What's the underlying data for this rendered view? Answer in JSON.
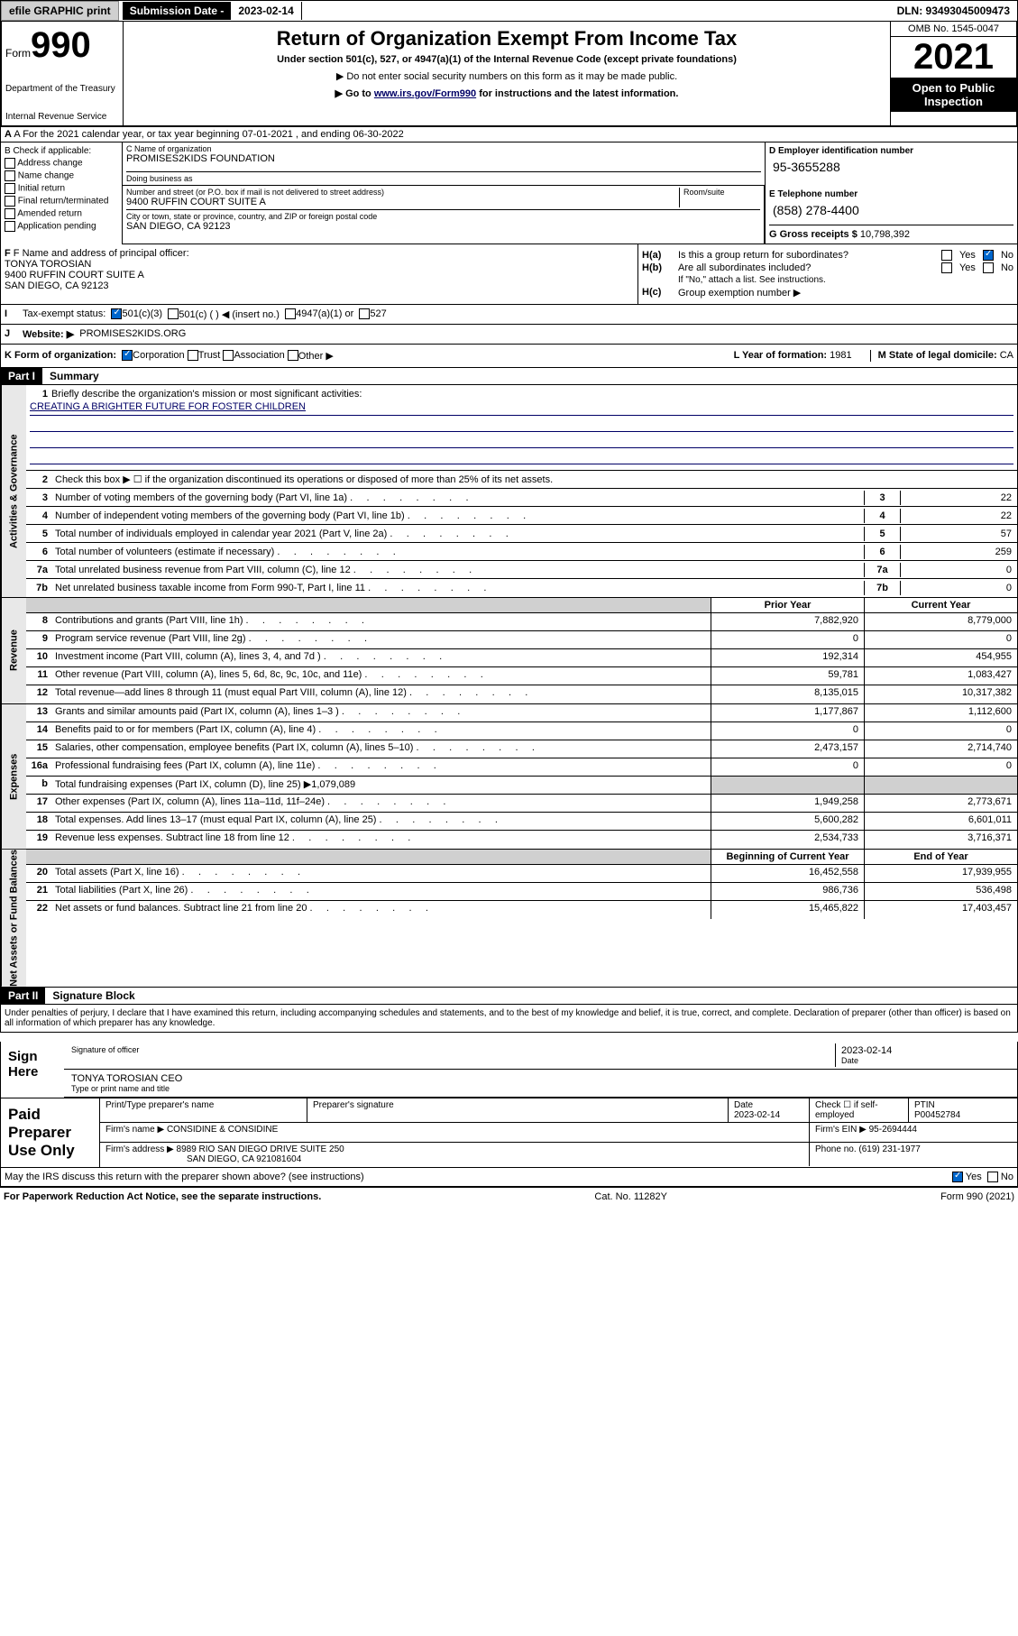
{
  "topbar": {
    "efile": "efile GRAPHIC print",
    "subdate_label": "Submission Date - ",
    "subdate": "2023-02-14",
    "dln": "DLN: 93493045009473"
  },
  "header": {
    "form_prefix": "Form",
    "form_num": "990",
    "dept": "Department of the Treasury",
    "irs": "Internal Revenue Service",
    "title": "Return of Organization Exempt From Income Tax",
    "sub": "Under section 501(c), 527, or 4947(a)(1) of the Internal Revenue Code (except private foundations)",
    "note1": "▶ Do not enter social security numbers on this form as it may be made public.",
    "note2_pre": "▶ Go to ",
    "note2_link": "www.irs.gov/Form990",
    "note2_post": " for instructions and the latest information.",
    "omb": "OMB No. 1545-0047",
    "year": "2021",
    "open": "Open to Public Inspection"
  },
  "rowA": {
    "text": "A For the 2021 calendar year, or tax year beginning 07-01-2021   , and ending 06-30-2022"
  },
  "colB": {
    "label": "B Check if applicable:",
    "items": [
      "Address change",
      "Name change",
      "Initial return",
      "Final return/terminated",
      "Amended return",
      "Application pending"
    ]
  },
  "colC": {
    "name_label": "C Name of organization",
    "name": "PROMISES2KIDS FOUNDATION",
    "dba_label": "Doing business as",
    "dba": "",
    "addr_label": "Number and street (or P.O. box if mail is not delivered to street address)",
    "room_label": "Room/suite",
    "addr": "9400 RUFFIN COURT SUITE A",
    "city_label": "City or town, state or province, country, and ZIP or foreign postal code",
    "city": "SAN DIEGO, CA  92123"
  },
  "colD": {
    "label": "D Employer identification number",
    "val": "95-3655288"
  },
  "colE": {
    "label": "E Telephone number",
    "val": "(858) 278-4400"
  },
  "colG": {
    "label": "G Gross receipts $ ",
    "val": "10,798,392"
  },
  "rowF": {
    "label": "F  Name and address of principal officer:",
    "name": "TONYA TOROSIAN",
    "addr1": "9400 RUFFIN COURT SUITE A",
    "addr2": "SAN DIEGO, CA  92123"
  },
  "rowH": {
    "a": "Is this a group return for subordinates?",
    "b": "Are all subordinates included?",
    "b_note": "If \"No,\" attach a list. See instructions.",
    "c": "Group exemption number ▶"
  },
  "rowI": {
    "label": "Tax-exempt status:",
    "opts": [
      "501(c)(3)",
      "501(c) (  ) ◀ (insert no.)",
      "4947(a)(1) or",
      "527"
    ]
  },
  "rowJ": {
    "label": "Website: ▶",
    "val": "PROMISES2KIDS.ORG"
  },
  "rowK": {
    "label": "K Form of organization:",
    "opts": [
      "Corporation",
      "Trust",
      "Association",
      "Other ▶"
    ]
  },
  "rowL": {
    "label": "L Year of formation: ",
    "val": "1981"
  },
  "rowM": {
    "label": "M State of legal domicile: ",
    "val": "CA"
  },
  "part1": {
    "hdr": "Part I",
    "title": "Summary"
  },
  "summary": {
    "q1": "Briefly describe the organization's mission or most significant activities:",
    "q1_val": "CREATING A BRIGHTER FUTURE FOR FOSTER CHILDREN",
    "q2": "Check this box ▶ ☐  if the organization discontinued its operations or disposed of more than 25% of its net assets.",
    "lines": [
      {
        "n": "3",
        "t": "Number of voting members of the governing body (Part VI, line 1a)",
        "v": "22"
      },
      {
        "n": "4",
        "t": "Number of independent voting members of the governing body (Part VI, line 1b)",
        "v": "22"
      },
      {
        "n": "5",
        "t": "Total number of individuals employed in calendar year 2021 (Part V, line 2a)",
        "v": "57"
      },
      {
        "n": "6",
        "t": "Total number of volunteers (estimate if necessary)",
        "v": "259"
      },
      {
        "n": "7a",
        "t": "Total unrelated business revenue from Part VIII, column (C), line 12",
        "v": "0"
      },
      {
        "n": "7b",
        "t": "Net unrelated business taxable income from Form 990-T, Part I, line 11",
        "v": "0"
      }
    ]
  },
  "revenue": {
    "hdr_prior": "Prior Year",
    "hdr_curr": "Current Year",
    "rows": [
      {
        "n": "8",
        "t": "Contributions and grants (Part VIII, line 1h)",
        "p": "7,882,920",
        "c": "8,779,000"
      },
      {
        "n": "9",
        "t": "Program service revenue (Part VIII, line 2g)",
        "p": "0",
        "c": "0"
      },
      {
        "n": "10",
        "t": "Investment income (Part VIII, column (A), lines 3, 4, and 7d )",
        "p": "192,314",
        "c": "454,955"
      },
      {
        "n": "11",
        "t": "Other revenue (Part VIII, column (A), lines 5, 6d, 8c, 9c, 10c, and 11e)",
        "p": "59,781",
        "c": "1,083,427"
      },
      {
        "n": "12",
        "t": "Total revenue—add lines 8 through 11 (must equal Part VIII, column (A), line 12)",
        "p": "8,135,015",
        "c": "10,317,382"
      }
    ]
  },
  "expenses": {
    "rows": [
      {
        "n": "13",
        "t": "Grants and similar amounts paid (Part IX, column (A), lines 1–3 )",
        "p": "1,177,867",
        "c": "1,112,600"
      },
      {
        "n": "14",
        "t": "Benefits paid to or for members (Part IX, column (A), line 4)",
        "p": "0",
        "c": "0"
      },
      {
        "n": "15",
        "t": "Salaries, other compensation, employee benefits (Part IX, column (A), lines 5–10)",
        "p": "2,473,157",
        "c": "2,714,740"
      },
      {
        "n": "16a",
        "t": "Professional fundraising fees (Part IX, column (A), line 11e)",
        "p": "0",
        "c": "0"
      },
      {
        "n": "b",
        "t": "Total fundraising expenses (Part IX, column (D), line 25) ▶1,079,089",
        "p": "",
        "c": "",
        "grey": true
      },
      {
        "n": "17",
        "t": "Other expenses (Part IX, column (A), lines 11a–11d, 11f–24e)",
        "p": "1,949,258",
        "c": "2,773,671"
      },
      {
        "n": "18",
        "t": "Total expenses. Add lines 13–17 (must equal Part IX, column (A), line 25)",
        "p": "5,600,282",
        "c": "6,601,011"
      },
      {
        "n": "19",
        "t": "Revenue less expenses. Subtract line 18 from line 12",
        "p": "2,534,733",
        "c": "3,716,371"
      }
    ]
  },
  "netassets": {
    "hdr_prior": "Beginning of Current Year",
    "hdr_curr": "End of Year",
    "rows": [
      {
        "n": "20",
        "t": "Total assets (Part X, line 16)",
        "p": "16,452,558",
        "c": "17,939,955"
      },
      {
        "n": "21",
        "t": "Total liabilities (Part X, line 26)",
        "p": "986,736",
        "c": "536,498"
      },
      {
        "n": "22",
        "t": "Net assets or fund balances. Subtract line 21 from line 20",
        "p": "15,465,822",
        "c": "17,403,457"
      }
    ]
  },
  "part2": {
    "hdr": "Part II",
    "title": "Signature Block",
    "decl": "Under penalties of perjury, I declare that I have examined this return, including accompanying schedules and statements, and to the best of my knowledge and belief, it is true, correct, and complete. Declaration of preparer (other than officer) is based on all information of which preparer has any knowledge."
  },
  "sign": {
    "label": "Sign Here",
    "sig_label": "Signature of officer",
    "date": "2023-02-14",
    "date_label": "Date",
    "name": "TONYA TOROSIAN CEO",
    "name_label": "Type or print name and title"
  },
  "prep": {
    "label": "Paid Preparer Use Only",
    "col1": "Print/Type preparer's name",
    "col2": "Preparer's signature",
    "col3": "Date",
    "col3_val": "2023-02-14",
    "col4": "Check ☐ if self-employed",
    "col5": "PTIN",
    "col5_val": "P00452784",
    "firm_label": "Firm's name    ▶",
    "firm": "CONSIDINE & CONSIDINE",
    "ein_label": "Firm's EIN ▶",
    "ein": "95-2694444",
    "addr_label": "Firm's address ▶",
    "addr1": "8989 RIO SAN DIEGO DRIVE SUITE 250",
    "addr2": "SAN DIEGO, CA  921081604",
    "phone_label": "Phone no.",
    "phone": "(619) 231-1977"
  },
  "discuss": {
    "text": "May the IRS discuss this return with the preparer shown above? (see instructions)"
  },
  "footer": {
    "left": "For Paperwork Reduction Act Notice, see the separate instructions.",
    "mid": "Cat. No. 11282Y",
    "right": "Form 990 (2021)"
  },
  "sidelabels": {
    "gov": "Activities & Governance",
    "rev": "Revenue",
    "exp": "Expenses",
    "net": "Net Assets or Fund Balances"
  }
}
